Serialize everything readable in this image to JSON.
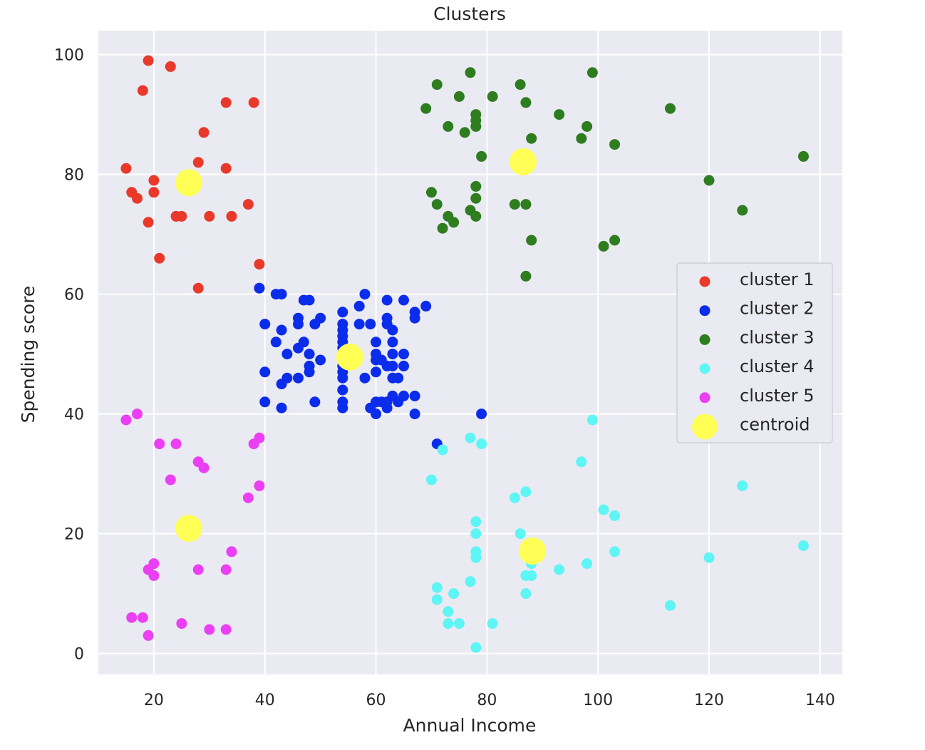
{
  "chart_data": {
    "type": "scatter",
    "title": "Clusters",
    "xlabel": "Annual Income",
    "ylabel": "Spending score",
    "xlim": [
      10,
      144
    ],
    "ylim": [
      -3.5,
      104
    ],
    "x_ticks": [
      20,
      40,
      60,
      80,
      100,
      120,
      140
    ],
    "y_ticks": [
      0,
      20,
      40,
      60,
      80,
      100
    ],
    "grid": true,
    "background": "#EAEAF2",
    "legend_position": "center-right",
    "series": [
      {
        "name": "cluster 1",
        "color": "#E8392A",
        "points": [
          [
            15,
            81
          ],
          [
            16,
            77
          ],
          [
            17,
            76
          ],
          [
            18,
            94
          ],
          [
            19,
            72
          ],
          [
            19,
            99
          ],
          [
            20,
            79
          ],
          [
            20,
            77
          ],
          [
            21,
            66
          ],
          [
            23,
            98
          ],
          [
            24,
            73
          ],
          [
            25,
            73
          ],
          [
            28,
            82
          ],
          [
            28,
            61
          ],
          [
            29,
            87
          ],
          [
            30,
            73
          ],
          [
            33,
            92
          ],
          [
            33,
            81
          ],
          [
            34,
            73
          ],
          [
            37,
            75
          ],
          [
            38,
            92
          ],
          [
            39,
            65
          ],
          [
            39,
            61
          ]
        ]
      },
      {
        "name": "cluster 2",
        "color": "#0B2DEB",
        "points": [
          [
            39,
            61
          ],
          [
            40,
            55
          ],
          [
            40,
            47
          ],
          [
            40,
            42
          ],
          [
            42,
            60
          ],
          [
            42,
            52
          ],
          [
            43,
            60
          ],
          [
            43,
            54
          ],
          [
            43,
            45
          ],
          [
            43,
            41
          ],
          [
            44,
            50
          ],
          [
            44,
            46
          ],
          [
            46,
            56
          ],
          [
            46,
            55
          ],
          [
            46,
            51
          ],
          [
            46,
            46
          ],
          [
            47,
            59
          ],
          [
            47,
            52
          ],
          [
            48,
            59
          ],
          [
            48,
            50
          ],
          [
            48,
            48
          ],
          [
            48,
            47
          ],
          [
            49,
            55
          ],
          [
            49,
            42
          ],
          [
            50,
            56
          ],
          [
            50,
            49
          ],
          [
            54,
            57
          ],
          [
            54,
            55
          ],
          [
            54,
            54
          ],
          [
            54,
            53
          ],
          [
            54,
            52
          ],
          [
            54,
            51
          ],
          [
            54,
            48
          ],
          [
            54,
            47
          ],
          [
            54,
            46
          ],
          [
            54,
            44
          ],
          [
            54,
            42
          ],
          [
            54,
            41
          ],
          [
            57,
            58
          ],
          [
            57,
            55
          ],
          [
            58,
            60
          ],
          [
            58,
            46
          ],
          [
            59,
            55
          ],
          [
            59,
            41
          ],
          [
            60,
            52
          ],
          [
            60,
            50
          ],
          [
            60,
            49
          ],
          [
            60,
            47
          ],
          [
            60,
            42
          ],
          [
            60,
            40
          ],
          [
            61,
            49
          ],
          [
            61,
            42
          ],
          [
            62,
            59
          ],
          [
            62,
            56
          ],
          [
            62,
            55
          ],
          [
            62,
            48
          ],
          [
            62,
            42
          ],
          [
            62,
            41
          ],
          [
            63,
            54
          ],
          [
            63,
            52
          ],
          [
            63,
            50
          ],
          [
            63,
            48
          ],
          [
            63,
            46
          ],
          [
            63,
            43
          ],
          [
            64,
            46
          ],
          [
            64,
            42
          ],
          [
            65,
            59
          ],
          [
            65,
            50
          ],
          [
            65,
            48
          ],
          [
            65,
            43
          ],
          [
            67,
            57
          ],
          [
            67,
            56
          ],
          [
            67,
            43
          ],
          [
            67,
            40
          ],
          [
            69,
            58
          ],
          [
            71,
            35
          ],
          [
            79,
            40
          ]
        ]
      },
      {
        "name": "cluster 3",
        "color": "#2E7D1F",
        "points": [
          [
            69,
            91
          ],
          [
            70,
            77
          ],
          [
            71,
            95
          ],
          [
            71,
            75
          ],
          [
            72,
            71
          ],
          [
            73,
            88
          ],
          [
            73,
            73
          ],
          [
            74,
            72
          ],
          [
            75,
            93
          ],
          [
            76,
            87
          ],
          [
            77,
            97
          ],
          [
            77,
            74
          ],
          [
            78,
            90
          ],
          [
            78,
            89
          ],
          [
            78,
            88
          ],
          [
            78,
            78
          ],
          [
            78,
            76
          ],
          [
            78,
            73
          ],
          [
            79,
            83
          ],
          [
            81,
            93
          ],
          [
            85,
            75
          ],
          [
            86,
            95
          ],
          [
            87,
            92
          ],
          [
            87,
            75
          ],
          [
            87,
            63
          ],
          [
            88,
            86
          ],
          [
            88,
            69
          ],
          [
            93,
            90
          ],
          [
            97,
            86
          ],
          [
            98,
            88
          ],
          [
            99,
            97
          ],
          [
            101,
            68
          ],
          [
            103,
            85
          ],
          [
            103,
            69
          ],
          [
            113,
            91
          ],
          [
            120,
            79
          ],
          [
            126,
            74
          ],
          [
            137,
            83
          ]
        ]
      },
      {
        "name": "cluster 4",
        "color": "#5EF5F5",
        "points": [
          [
            70,
            29
          ],
          [
            71,
            11
          ],
          [
            71,
            9
          ],
          [
            72,
            34
          ],
          [
            73,
            7
          ],
          [
            73,
            5
          ],
          [
            74,
            10
          ],
          [
            75,
            5
          ],
          [
            77,
            36
          ],
          [
            77,
            12
          ],
          [
            78,
            22
          ],
          [
            78,
            20
          ],
          [
            78,
            17
          ],
          [
            78,
            16
          ],
          [
            78,
            1
          ],
          [
            79,
            35
          ],
          [
            81,
            5
          ],
          [
            85,
            26
          ],
          [
            86,
            20
          ],
          [
            87,
            27
          ],
          [
            87,
            13
          ],
          [
            87,
            10
          ],
          [
            88,
            15
          ],
          [
            88,
            13
          ],
          [
            93,
            14
          ],
          [
            97,
            32
          ],
          [
            98,
            15
          ],
          [
            99,
            39
          ],
          [
            101,
            24
          ],
          [
            103,
            23
          ],
          [
            103,
            17
          ],
          [
            113,
            8
          ],
          [
            120,
            16
          ],
          [
            126,
            28
          ],
          [
            137,
            18
          ]
        ]
      },
      {
        "name": "cluster 5",
        "color": "#EA3FF2",
        "points": [
          [
            15,
            39
          ],
          [
            16,
            6
          ],
          [
            17,
            40
          ],
          [
            18,
            6
          ],
          [
            19,
            14
          ],
          [
            19,
            3
          ],
          [
            20,
            15
          ],
          [
            20,
            13
          ],
          [
            21,
            35
          ],
          [
            23,
            29
          ],
          [
            24,
            35
          ],
          [
            25,
            5
          ],
          [
            28,
            32
          ],
          [
            28,
            14
          ],
          [
            29,
            31
          ],
          [
            30,
            4
          ],
          [
            33,
            14
          ],
          [
            33,
            4
          ],
          [
            34,
            17
          ],
          [
            37,
            26
          ],
          [
            38,
            35
          ],
          [
            39,
            36
          ],
          [
            39,
            28
          ]
        ]
      },
      {
        "name": "centroid",
        "color": "#FFFF55",
        "points": [
          [
            26.3,
            78.6
          ],
          [
            55.3,
            49.5
          ],
          [
            86.5,
            82.1
          ],
          [
            88.2,
            17.1
          ],
          [
            26.3,
            20.9
          ]
        ]
      }
    ]
  }
}
